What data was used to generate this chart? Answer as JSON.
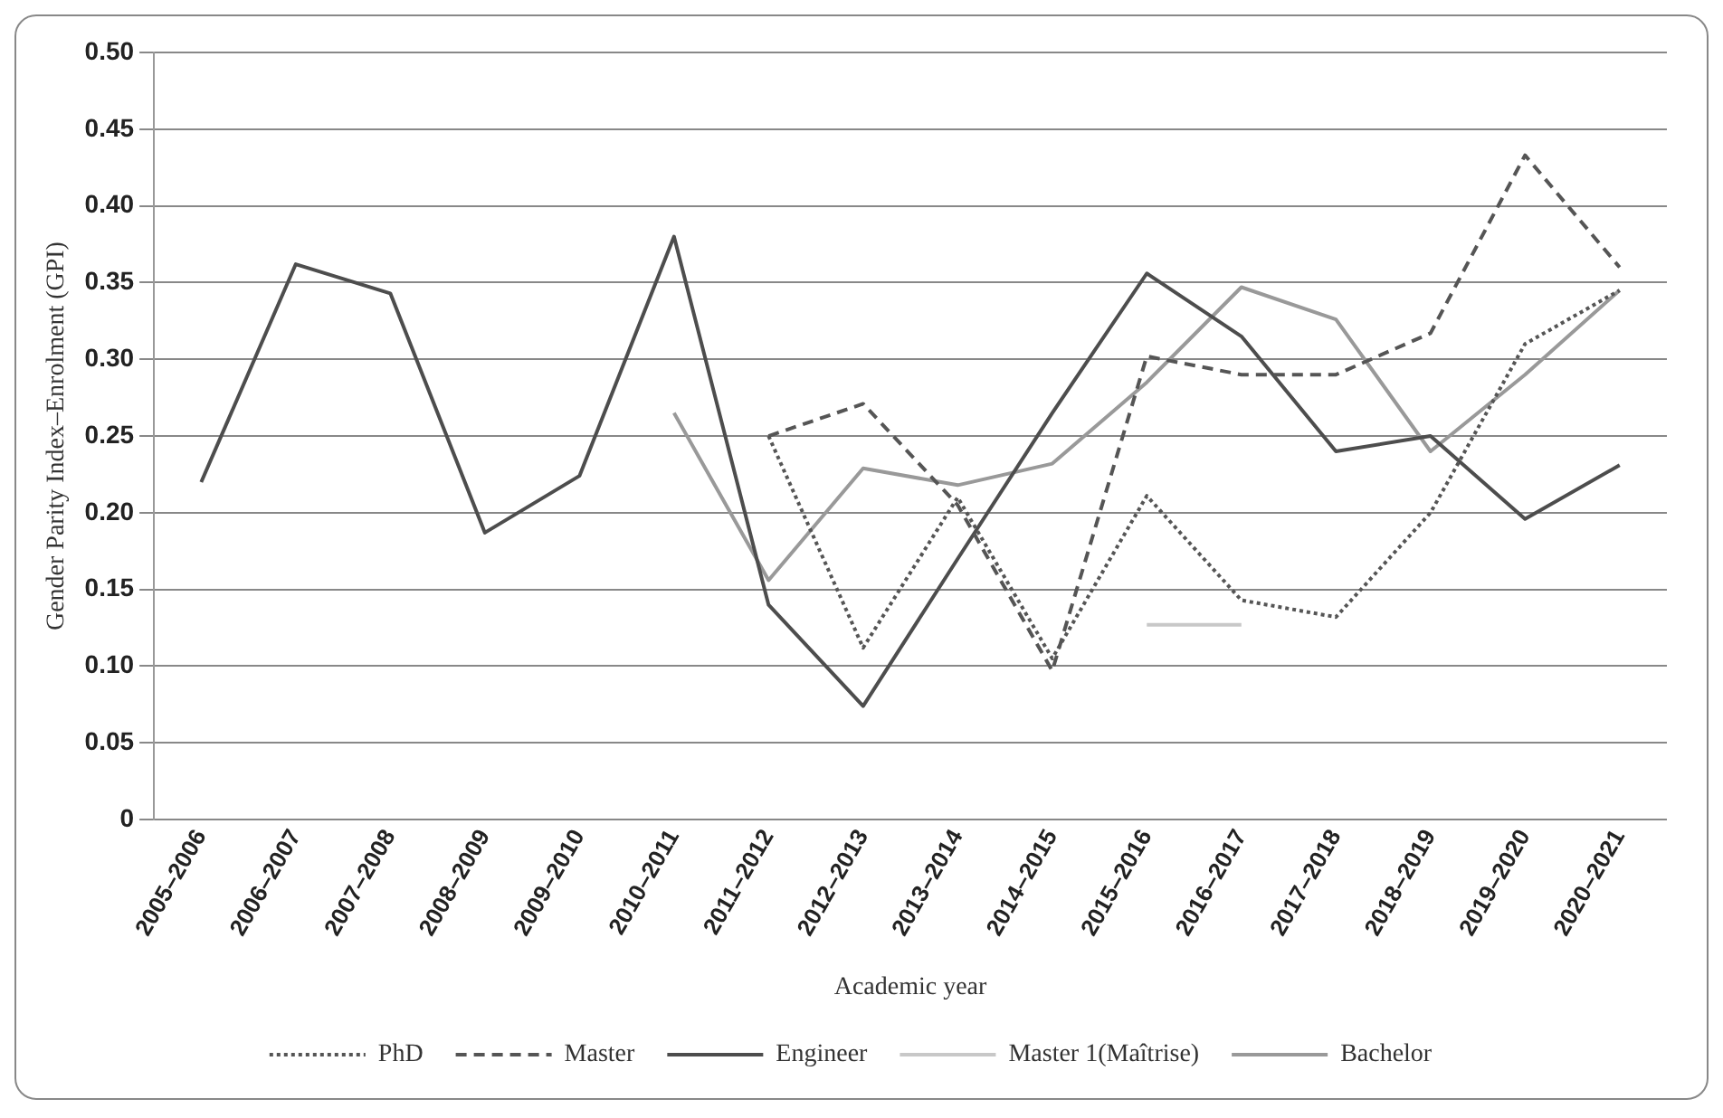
{
  "chart_data": {
    "type": "line",
    "xlabel": "Academic year",
    "ylabel": "Gender Parity Index–Enrolment (GPI)",
    "categories": [
      "2005–2006",
      "2006–2007",
      "2007–2008",
      "2008–2009",
      "2009–2010",
      "2010–2011",
      "2011–2012",
      "2012–2013",
      "2013–2014",
      "2014–2015",
      "2015–2016",
      "2016–2017",
      "2017–2018",
      "2018–2019",
      "2019–2020",
      "2020–2021"
    ],
    "ylim": [
      0,
      0.5
    ],
    "yticks": [
      0,
      {
        "value": 0.05,
        "label": "0.05"
      },
      {
        "value": 0.1,
        "label": "0.10"
      },
      {
        "value": 0.15,
        "label": "0.15"
      },
      {
        "value": 0.2,
        "label": "0.20"
      },
      {
        "value": 0.25,
        "label": "0.25"
      },
      {
        "value": 0.3,
        "label": "0.30"
      },
      {
        "value": 0.35,
        "label": "0.35"
      },
      {
        "value": 0.4,
        "label": "0.40"
      },
      {
        "value": 0.45,
        "label": "0.45"
      },
      {
        "value": 0.5,
        "label": "0.50"
      }
    ],
    "grid": "y",
    "legend": "bottom",
    "marker": "none",
    "series": [
      {
        "name": "PhD",
        "color": "#555555",
        "line_style": "dotted",
        "values": [
          null,
          null,
          null,
          null,
          null,
          null,
          0.25,
          0.112,
          0.21,
          0.105,
          0.211,
          0.143,
          0.132,
          0.2,
          0.31,
          0.345
        ]
      },
      {
        "name": "Master",
        "color": "#555555",
        "line_style": "dashed",
        "values": [
          null,
          null,
          null,
          null,
          null,
          null,
          0.25,
          0.271,
          0.205,
          0.097,
          0.302,
          0.29,
          0.29,
          0.317,
          0.433,
          0.36
        ]
      },
      {
        "name": "Engineer",
        "color": "#4d4d4d",
        "line_style": "solid",
        "values": [
          0.22,
          0.362,
          0.343,
          0.187,
          0.224,
          0.38,
          0.14,
          0.074,
          0.17,
          0.265,
          0.356,
          0.315,
          0.24,
          0.25,
          0.196,
          0.231
        ]
      },
      {
        "name": "Master 1(Maîtrise)",
        "color": "#c8c8c8",
        "line_style": "solid",
        "values": [
          null,
          null,
          null,
          null,
          null,
          null,
          null,
          null,
          null,
          null,
          0.127,
          0.127,
          null,
          null,
          null,
          null
        ]
      },
      {
        "name": "Bachelor",
        "color": "#999999",
        "line_style": "solid",
        "values": [
          null,
          null,
          null,
          null,
          null,
          0.265,
          0.156,
          0.229,
          0.218,
          0.232,
          0.285,
          0.347,
          0.326,
          0.24,
          0.29,
          0.345
        ]
      }
    ]
  }
}
